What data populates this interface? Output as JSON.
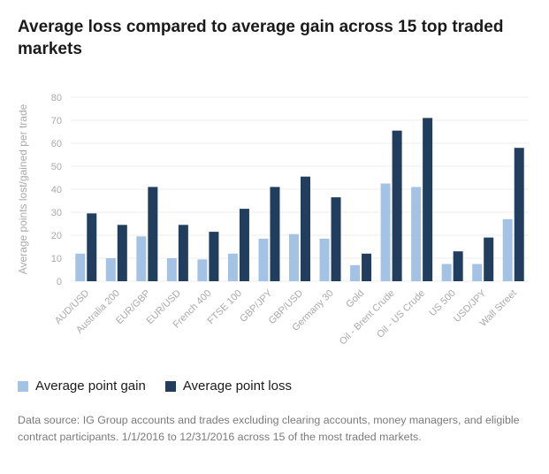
{
  "title": "Average loss compared to average gain across 15 top traded markets",
  "colors": {
    "gain": "#a4c3e4",
    "loss": "#213e5e",
    "grid": "#ececec",
    "axis_text": "#a9a9a9"
  },
  "legend": {
    "gain_label": "Average point gain",
    "loss_label": "Average point loss"
  },
  "source_note": "Data source: IG Group accounts and trades excluding clearing accounts, money managers, and eligible contract participants. 1/1/2016 to 12/31/2016 across 15 of the most traded markets.",
  "chart_data": {
    "type": "bar",
    "title": "Average loss compared to average gain across 15 top traded markets",
    "xlabel": "",
    "ylabel": "Average points lost/gained per trade",
    "ylim": [
      0,
      80
    ],
    "yticks": [
      0,
      10,
      20,
      30,
      40,
      50,
      60,
      70,
      80
    ],
    "grid": true,
    "legend_position": "bottom-left",
    "categories": [
      "AUD/USD",
      "Australia 200",
      "EUR/GBP",
      "EUR/USD",
      "French 400",
      "FTSE 100",
      "GBP/JPY",
      "GBP/USD",
      "Germany 30",
      "Gold",
      "Oil - Brent Crude",
      "Oil - US Crude",
      "US 500",
      "USD/JPY",
      "Wall Street"
    ],
    "series": [
      {
        "name": "Average point gain",
        "values": [
          12,
          10,
          19.5,
          10,
          9.5,
          12,
          18.5,
          20.5,
          18.5,
          7,
          42.5,
          41,
          7.5,
          7.5,
          27
        ]
      },
      {
        "name": "Average point loss",
        "values": [
          29.5,
          24.5,
          41,
          24.5,
          21.5,
          31.5,
          41,
          45.5,
          36.5,
          12,
          65.5,
          71,
          13,
          19,
          58
        ]
      }
    ]
  }
}
